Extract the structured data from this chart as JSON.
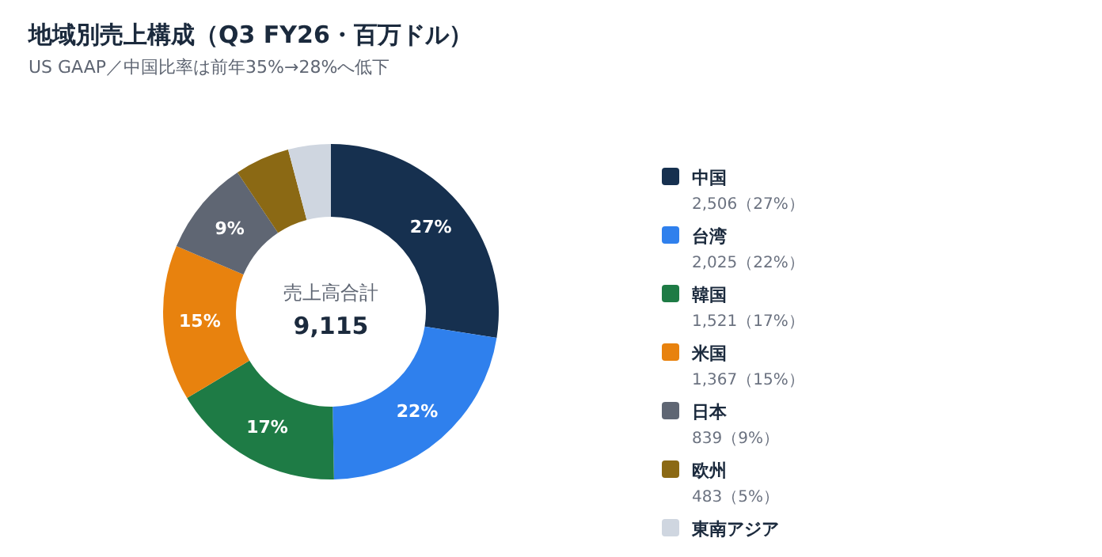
{
  "chart_data": {
    "type": "donut",
    "title": "地域別売上構成（Q3 FY26・百万ドル）",
    "subtitle": "US GAAP／中国比率は前年35%→28%へ低下",
    "categories": [
      "中国",
      "台湾",
      "韓国",
      "米国",
      "日本",
      "欧州",
      "東南アジア"
    ],
    "values": [
      2506,
      2025,
      1521,
      1367,
      839,
      483,
      374
    ],
    "colors": [
      "#16304f",
      "#2f80ed",
      "#1e7b45",
      "#e8820e",
      "#5f6673",
      "#8b6914",
      "#cfd6e0"
    ],
    "value_labels": [
      "2,506（27%）",
      "2,025（22%）",
      "1,521（17%）",
      "1,367（15%）",
      "839（9%）",
      "483（5%）",
      null
    ],
    "legend": "right",
    "annotations": [
      "売上高合計",
      "9,115",
      {
        "text": "27%",
        "x": "中国"
      },
      {
        "text": "22%",
        "x": "台湾"
      },
      {
        "text": "17%",
        "x": "韓国"
      },
      {
        "text": "15%",
        "x": "米国"
      },
      {
        "text": "9%",
        "x": "日本"
      }
    ]
  }
}
